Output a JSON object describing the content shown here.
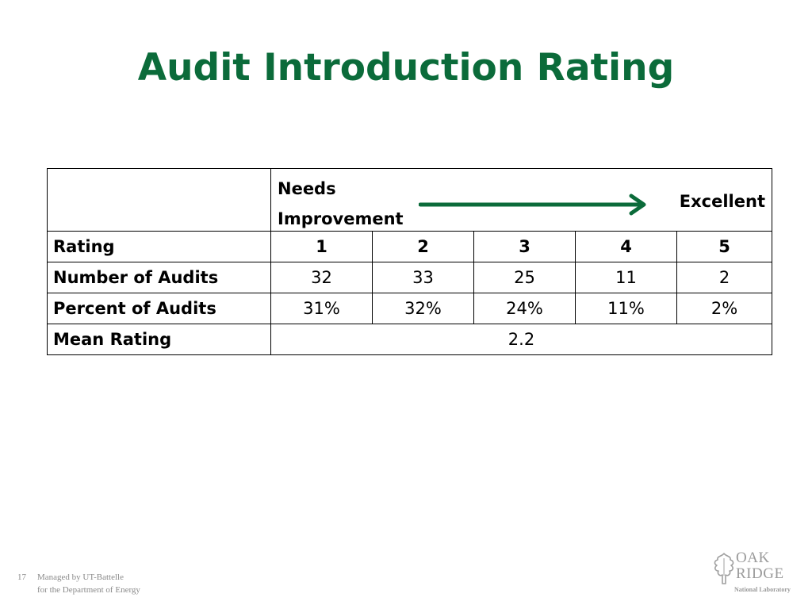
{
  "slide": {
    "title": "Audit Introduction Rating",
    "page_number": "17"
  },
  "table": {
    "scale_low_line1": "Needs",
    "scale_low_line2": "Improvement",
    "scale_high": "Excellent",
    "rows": {
      "rating": {
        "label": "Rating",
        "values": [
          "1",
          "2",
          "3",
          "4",
          "5"
        ]
      },
      "number": {
        "label": "Number of Audits",
        "values": [
          "32",
          "33",
          "25",
          "11",
          "2"
        ]
      },
      "percent": {
        "label": "Percent of Audits",
        "values": [
          "31%",
          "32%",
          "24%",
          "11%",
          "2%"
        ]
      },
      "mean": {
        "label": "Mean Rating",
        "value": "2.2"
      }
    }
  },
  "footer": {
    "line1": "Managed by UT-Battelle",
    "line2": "for the Department of Energy"
  },
  "logo": {
    "line1": "OAK",
    "line2": "RIDGE",
    "sub": "National Laboratory"
  },
  "colors": {
    "title": "#0b6b3a",
    "arrow": "#0b6b3a",
    "footer": "#8a8a8a"
  },
  "icons": [
    "right-arrow-icon",
    "oak-leaf-icon"
  ]
}
